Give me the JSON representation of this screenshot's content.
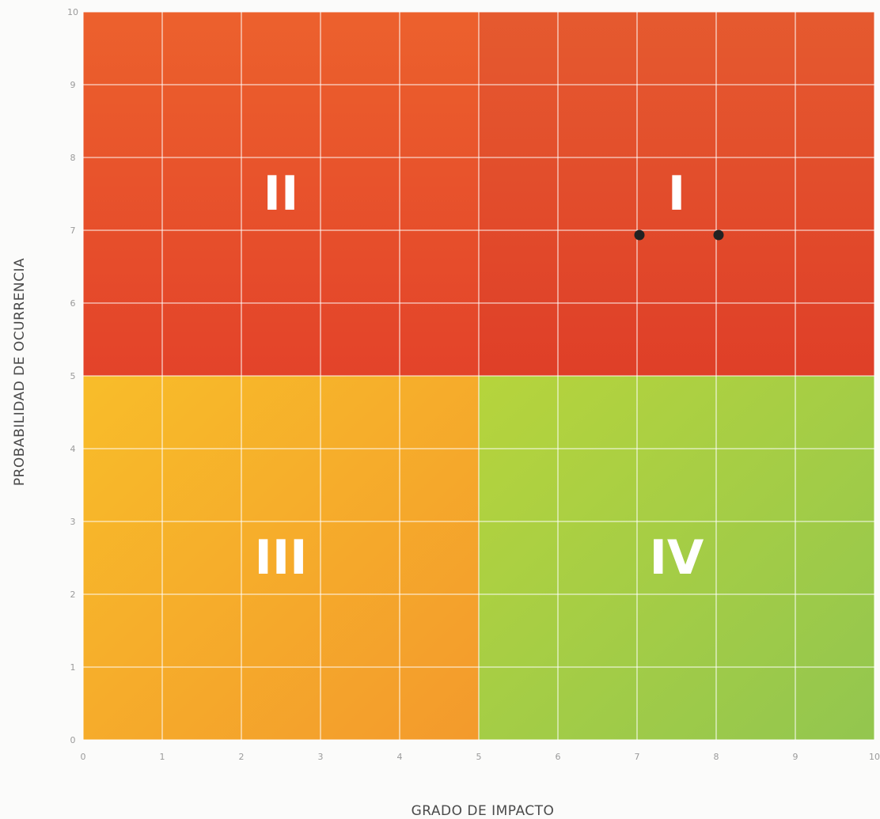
{
  "chart_data": {
    "type": "scatter",
    "title": "",
    "xlabel": "GRADO DE IMPACTO",
    "ylabel": "PROBABILIDAD DE OCURRENCIA",
    "xlim": [
      0,
      10
    ],
    "ylim": [
      0,
      10
    ],
    "x_ticks": [
      "0",
      "1",
      "2",
      "3",
      "4",
      "5",
      "6",
      "7",
      "8",
      "9",
      "10"
    ],
    "y_ticks": [
      "0",
      "1",
      "2",
      "3",
      "4",
      "5",
      "6",
      "7",
      "8",
      "9",
      "10"
    ],
    "grid": true,
    "quadrants": [
      {
        "label": "I",
        "x_range": [
          5,
          10
        ],
        "y_range": [
          5,
          10
        ],
        "color": "#e2482c"
      },
      {
        "label": "II",
        "x_range": [
          0,
          5
        ],
        "y_range": [
          5,
          10
        ],
        "color": "#e7512c"
      },
      {
        "label": "III",
        "x_range": [
          0,
          5
        ],
        "y_range": [
          0,
          5
        ],
        "color": "#f6ac2b"
      },
      {
        "label": "IV",
        "x_range": [
          5,
          10
        ],
        "y_range": [
          0,
          5
        ],
        "color": "#9fcc45"
      }
    ],
    "points": [
      {
        "x": 7,
        "y": 7
      },
      {
        "x": 8,
        "y": 7
      }
    ],
    "point_color": "#222222"
  }
}
